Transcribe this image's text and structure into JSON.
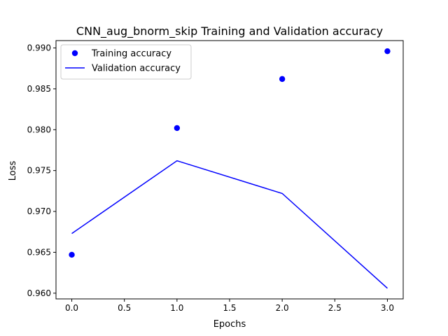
{
  "chart_data": {
    "type": "line",
    "title": "CNN_aug_bnorm_skip Training and Validation accuracy",
    "xlabel": "Epochs",
    "ylabel": "Loss",
    "xlim": [
      -0.15,
      3.15
    ],
    "ylim": [
      0.9593,
      0.9909
    ],
    "xticks": [
      0.0,
      0.5,
      1.0,
      1.5,
      2.0,
      2.5,
      3.0
    ],
    "xtick_labels": [
      "0.0",
      "0.5",
      "1.0",
      "1.5",
      "2.0",
      "2.5",
      "3.0"
    ],
    "yticks": [
      0.96,
      0.965,
      0.97,
      0.975,
      0.98,
      0.985,
      0.99
    ],
    "ytick_labels": [
      "0.960",
      "0.965",
      "0.970",
      "0.975",
      "0.980",
      "0.985",
      "0.990"
    ],
    "grid": false,
    "legend_position": "upper-left",
    "series": [
      {
        "name": "Training accuracy",
        "style": "markers",
        "color": "#0000ff",
        "x": [
          0,
          1,
          2,
          3
        ],
        "y": [
          0.9647,
          0.9802,
          0.9862,
          0.9896
        ]
      },
      {
        "name": "Validation accuracy",
        "style": "line",
        "color": "#0000ff",
        "x": [
          0,
          1,
          2,
          3
        ],
        "y": [
          0.9673,
          0.9762,
          0.9722,
          0.9606
        ]
      }
    ]
  }
}
